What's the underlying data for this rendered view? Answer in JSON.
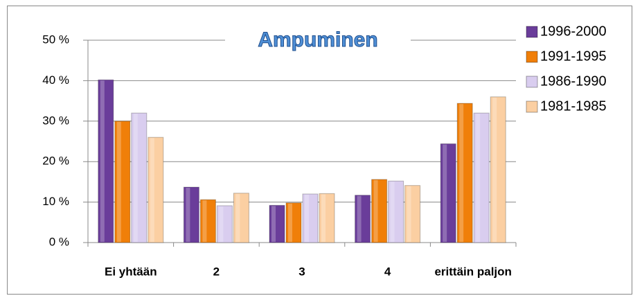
{
  "chart_data": {
    "type": "bar",
    "title": "Ampuminen",
    "categories": [
      "Ei yhtään",
      "2",
      "3",
      "4",
      "erittäin paljon"
    ],
    "series": [
      {
        "name": "1996-2000",
        "color": "#6a3d9a",
        "values": [
          40.2,
          13.7,
          9.2,
          11.7,
          24.4
        ]
      },
      {
        "name": "1991-1995",
        "color": "#f07f09",
        "values": [
          30,
          10.6,
          9.8,
          15.6,
          34.4
        ]
      },
      {
        "name": "1986-1990",
        "color": "#d9cdef",
        "values": [
          32,
          9.1,
          12,
          15.2,
          32
        ]
      },
      {
        "name": "1981-1985",
        "color": "#fbcfa2",
        "values": [
          26,
          12.2,
          12.1,
          14.1,
          36
        ]
      }
    ],
    "ylim": [
      0,
      50
    ],
    "yticks": [
      {
        "value": 0,
        "label": "0 %"
      },
      {
        "value": 10,
        "label": "10 %"
      },
      {
        "value": 20,
        "label": "20 %"
      },
      {
        "value": 30,
        "label": "30 %"
      },
      {
        "value": 40,
        "label": "40 %"
      },
      {
        "value": 50,
        "label": "50 %"
      }
    ],
    "grid": true,
    "legend": "right"
  }
}
